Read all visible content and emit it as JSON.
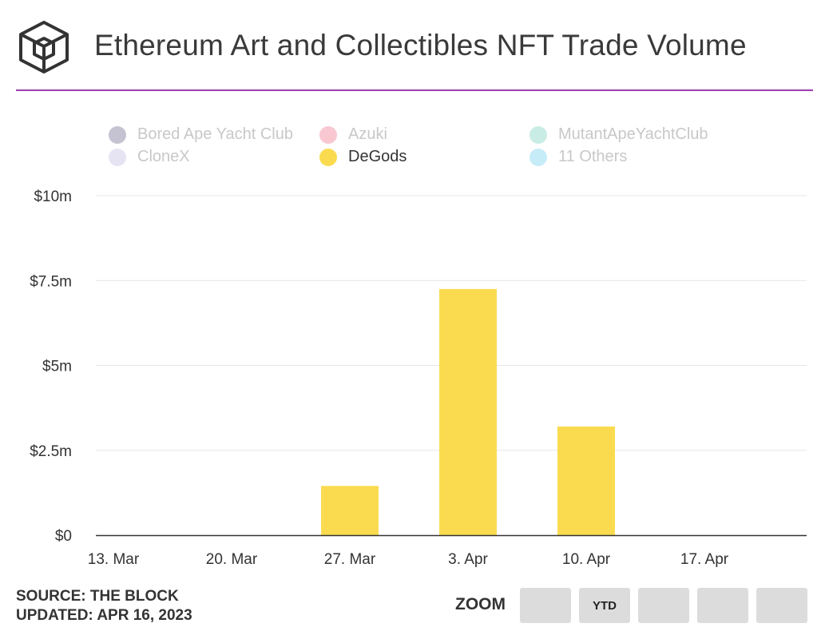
{
  "header": {
    "logo_icon": "the-block-cube-icon",
    "rule_color": "#9b3db0"
  },
  "legend": [
    {
      "name": "Bored Ape Yacht Club",
      "color": "#c5c3d2",
      "active": false
    },
    {
      "name": "Azuki",
      "color": "#f8c7d0",
      "active": false
    },
    {
      "name": "MutantApeYachtClub",
      "color": "#c9ece5",
      "active": false
    },
    {
      "name": "CloneX",
      "color": "#e6e4f3",
      "active": false
    },
    {
      "name": "DeGods",
      "color": "#fadb4f",
      "active": true
    },
    {
      "name": "11 Others",
      "color": "#c6ecf8",
      "active": false
    }
  ],
  "chart_data": {
    "type": "bar",
    "title": "Ethereum Art and Collectibles NFT Trade Volume",
    "xlabel": "",
    "ylabel": "",
    "ylim": [
      0,
      10
    ],
    "y_unit": "$m",
    "y_ticks": [
      {
        "value": 0,
        "label": "$0"
      },
      {
        "value": 2.5,
        "label": "$2.5m"
      },
      {
        "value": 5,
        "label": "$5m"
      },
      {
        "value": 7.5,
        "label": "$7.5m"
      },
      {
        "value": 10,
        "label": "$10m"
      }
    ],
    "categories": [
      "13. Mar",
      "20. Mar",
      "27. Mar",
      "3. Apr",
      "10. Apr",
      "17. Apr"
    ],
    "series": [
      {
        "name": "DeGods",
        "color": "#fadb4f",
        "values": [
          0,
          0,
          1.45,
          7.25,
          3.2,
          0
        ]
      }
    ],
    "grid": true,
    "legend_position": "top"
  },
  "footer": {
    "source": "SOURCE: THE BLOCK",
    "updated": "UPDATED: APR 16, 2023",
    "zoom_label": "ZOOM",
    "zoom_buttons": [
      "",
      "YTD",
      "",
      "",
      ""
    ]
  }
}
